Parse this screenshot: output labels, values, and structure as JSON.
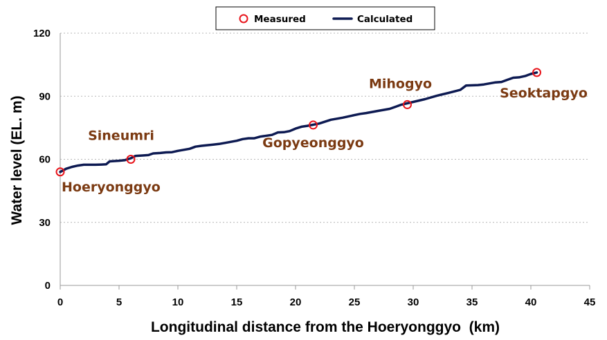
{
  "chart_data": {
    "type": "line",
    "title": "",
    "xlabel": "Longitudinal distance from the Hoeryonggyo  (km)",
    "ylabel": "Water level (EL. m)",
    "xlim": [
      0,
      45
    ],
    "ylim": [
      0,
      120
    ],
    "x_ticks": [
      "0",
      "5",
      "10",
      "15",
      "20",
      "25",
      "30",
      "35",
      "40",
      "45"
    ],
    "y_ticks": [
      "0",
      "30",
      "60",
      "90",
      "120"
    ],
    "grid": "horizontal dotted",
    "legend": "top-center",
    "series": [
      {
        "name": "Measured",
        "kind": "scatter",
        "color": "#e8141b",
        "points": [
          {
            "x": 0.0,
            "y": 54.0,
            "label": "Hoeryonggyo"
          },
          {
            "x": 6.0,
            "y": 60.0,
            "label": "Sineumri"
          },
          {
            "x": 21.5,
            "y": 76.3,
            "label": "Gopyeonggyo"
          },
          {
            "x": 29.5,
            "y": 86.0,
            "label": "Mihogyo"
          },
          {
            "x": 40.5,
            "y": 101.3,
            "label": "Seoktapgyo"
          }
        ]
      },
      {
        "name": "Calculated",
        "kind": "line",
        "color": "#0d1a52",
        "x": [
          0.0,
          0.5,
          1.0,
          1.5,
          2.0,
          2.5,
          3.0,
          3.5,
          3.9,
          4.2,
          5.0,
          5.5,
          6.0,
          6.4,
          7.0,
          7.5,
          7.9,
          8.5,
          9.0,
          9.5,
          10.0,
          11.0,
          11.5,
          12.0,
          13.0,
          13.5,
          14.0,
          15.0,
          15.5,
          16.0,
          16.5,
          17.0,
          18.0,
          18.5,
          19.0,
          19.5,
          20.0,
          20.5,
          21.0,
          22.0,
          23.0,
          24.0,
          25.0,
          25.5,
          26.0,
          27.0,
          28.0,
          28.5,
          29.0,
          30.0,
          31.0,
          32.0,
          33.0,
          34.0,
          34.5,
          35.5,
          36.0,
          37.0,
          37.5,
          38.0,
          38.5,
          39.0,
          39.5,
          40.0,
          40.5
        ],
        "y": [
          54.0,
          55.5,
          56.4,
          57.0,
          57.4,
          57.4,
          57.4,
          57.5,
          57.6,
          59.0,
          59.3,
          59.6,
          60.5,
          61.6,
          61.8,
          62.0,
          62.8,
          63.0,
          63.3,
          63.4,
          64.0,
          65.0,
          66.0,
          66.4,
          67.0,
          67.3,
          67.8,
          68.8,
          69.6,
          70.0,
          70.0,
          70.8,
          71.6,
          72.8,
          72.9,
          73.4,
          74.6,
          75.5,
          75.9,
          77.0,
          78.8,
          79.8,
          81.0,
          81.6,
          82.0,
          83.0,
          84.0,
          85.0,
          86.0,
          87.3,
          88.6,
          90.2,
          91.6,
          93.0,
          95.1,
          95.3,
          95.6,
          96.6,
          96.8,
          97.8,
          98.8,
          99.0,
          99.6,
          100.6,
          101.3
        ]
      }
    ]
  }
}
